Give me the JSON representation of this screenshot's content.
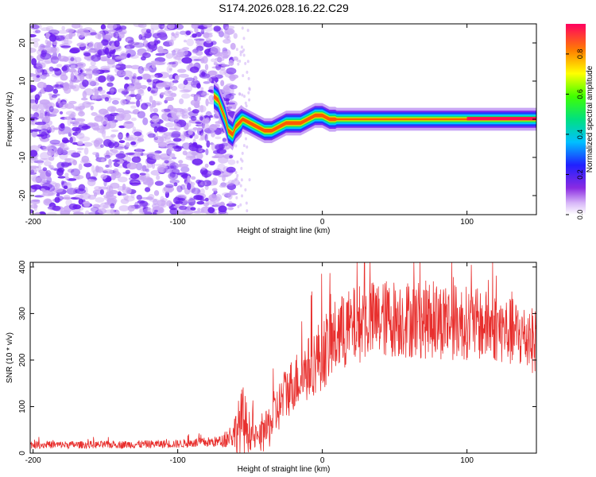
{
  "title": "S174.2026.028.16.22.C29",
  "colors": {
    "snr_line": "#e8302e",
    "spectrum_main": "#6a1cf0",
    "spectrum_light": "#c9a6f5"
  },
  "chart_data": [
    {
      "type": "heatmap",
      "name": "spectrogram",
      "xlabel": "Height of straight line (km)",
      "ylabel": "Frequency (Hz)",
      "xlim": [
        -202,
        148
      ],
      "ylim": [
        -25,
        25
      ],
      "xticks": [
        -200,
        -100,
        0,
        100
      ],
      "yticks": [
        -20,
        -10,
        0,
        10,
        20
      ],
      "noise_region_x": [
        -202,
        -60
      ],
      "trace": {
        "x": [
          -75,
          -72,
          -70,
          -67,
          -65,
          -62,
          -60,
          -55,
          -50,
          -45,
          -40,
          -35,
          -30,
          -25,
          -20,
          -15,
          -10,
          -5,
          0,
          5,
          10,
          20,
          30,
          50,
          80,
          110,
          148
        ],
        "freq": [
          6,
          5,
          3,
          0,
          -3,
          -4,
          -2,
          0,
          -1,
          -2,
          -3,
          -3,
          -2,
          -1,
          -1,
          -1,
          0,
          1,
          1,
          0,
          0,
          0,
          0,
          0,
          0,
          0,
          0
        ]
      },
      "colorbar": {
        "label": "Normalized spectral amplitude",
        "range": [
          0,
          0.95
        ],
        "ticks": [
          "0.0",
          "0.2",
          "0.4",
          "0.6",
          "0.8"
        ]
      }
    },
    {
      "type": "line",
      "name": "snr",
      "xlabel": "Height of straight line (km)",
      "ylabel": "SNR (10 * v/v)",
      "xlim": [
        -202,
        148
      ],
      "ylim": [
        0,
        410
      ],
      "xticks": [
        -200,
        -100,
        0,
        100
      ],
      "yticks": [
        0,
        100,
        200,
        300,
        400
      ],
      "envelope": {
        "x": [
          -202,
          -150,
          -100,
          -70,
          -62,
          -55,
          -50,
          -45,
          -40,
          -35,
          -30,
          -25,
          -20,
          -15,
          -10,
          -5,
          0,
          10,
          20,
          30,
          50,
          80,
          100,
          120,
          135,
          148
        ],
        "mean": [
          18,
          18,
          20,
          25,
          40,
          70,
          45,
          30,
          40,
          70,
          100,
          130,
          150,
          165,
          180,
          200,
          215,
          250,
          270,
          285,
          290,
          285,
          280,
          270,
          255,
          240
        ],
        "spread": [
          8,
          8,
          9,
          12,
          30,
          80,
          40,
          25,
          40,
          55,
          55,
          60,
          60,
          65,
          70,
          75,
          80,
          85,
          85,
          85,
          85,
          85,
          80,
          75,
          75,
          70
        ]
      }
    }
  ]
}
